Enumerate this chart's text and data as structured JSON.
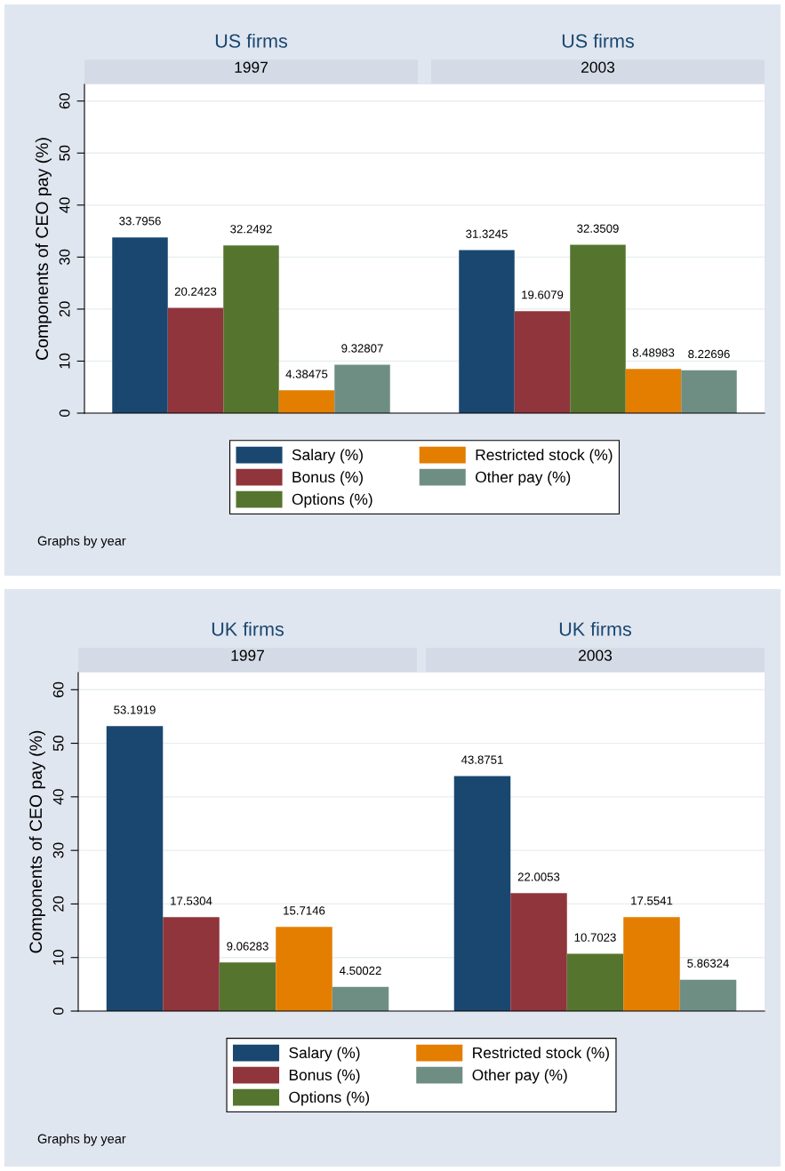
{
  "chart_data": [
    {
      "type": "bar",
      "title": "US firms",
      "ylabel": "Components of CEO pay (%)",
      "categories": [
        "1997",
        "2003"
      ],
      "ylim": [
        0,
        63.2
      ],
      "yticks": [
        0,
        10,
        20,
        30,
        40,
        50,
        60
      ],
      "grid": "y",
      "data_labels": true,
      "legend": "bottom",
      "annotations": [
        "Graphs by year"
      ],
      "series": [
        {
          "name": "Salary (%)",
          "color": "#1a476f",
          "values": [
            33.7956,
            31.3245
          ]
        },
        {
          "name": "Bonus (%)",
          "color": "#90353b",
          "values": [
            20.2423,
            19.6079
          ]
        },
        {
          "name": "Options (%)",
          "color": "#55752f",
          "values": [
            32.2492,
            32.3509
          ]
        },
        {
          "name": "Restricted stock (%)",
          "color": "#e37e00",
          "values": [
            4.38475,
            8.48983
          ]
        },
        {
          "name": "Other pay (%)",
          "color": "#6e8e84",
          "values": [
            9.32807,
            8.22696
          ]
        }
      ]
    },
    {
      "type": "bar",
      "title": "UK firms",
      "ylabel": "Components of CEO pay (%)",
      "categories": [
        "1997",
        "2003"
      ],
      "ylim": [
        0,
        63.2
      ],
      "yticks": [
        0,
        10,
        20,
        30,
        40,
        50,
        60
      ],
      "grid": "y",
      "data_labels": true,
      "legend": "bottom",
      "annotations": [
        "Graphs by year"
      ],
      "series": [
        {
          "name": "Salary (%)",
          "color": "#1a476f",
          "values": [
            53.1919,
            43.8751
          ]
        },
        {
          "name": "Bonus (%)",
          "color": "#90353b",
          "values": [
            17.5304,
            22.0053
          ]
        },
        {
          "name": "Options (%)",
          "color": "#55752f",
          "values": [
            9.06283,
            10.7023
          ]
        },
        {
          "name": "Restricted stock (%)",
          "color": "#e37e00",
          "values": [
            15.7146,
            17.5541
          ]
        },
        {
          "name": "Other pay (%)",
          "color": "#6e8e84",
          "values": [
            4.50022,
            5.86324
          ]
        }
      ]
    }
  ]
}
